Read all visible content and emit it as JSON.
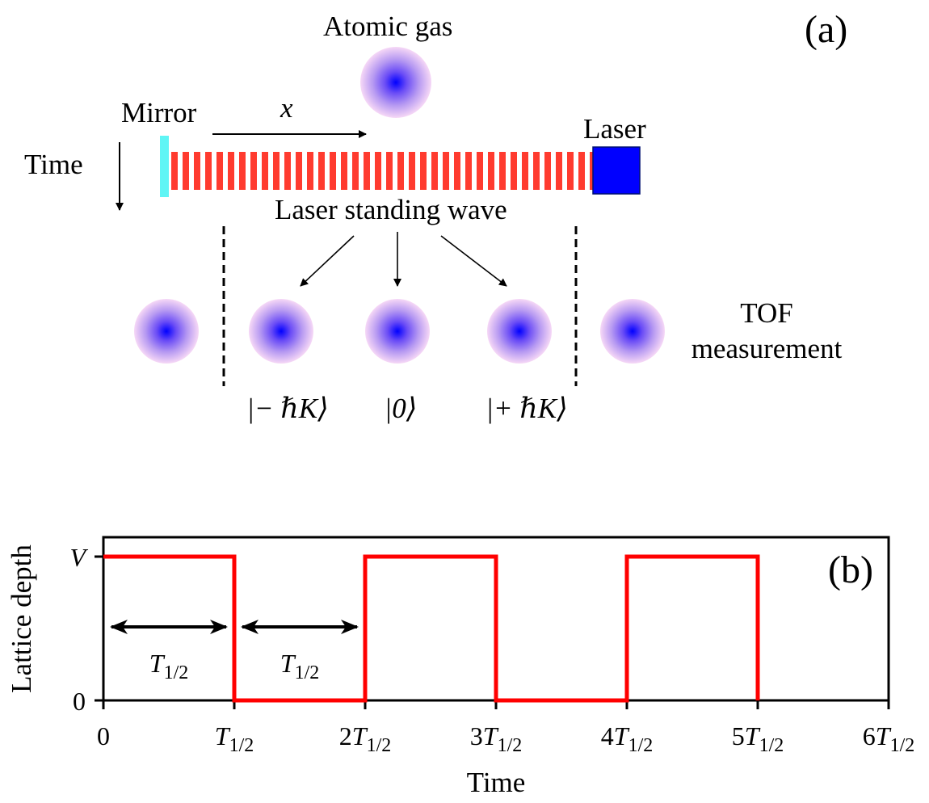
{
  "panel_a": {
    "panel_label": "(a)",
    "atomic_gas_label": "Atomic gas",
    "mirror_label": "Mirror",
    "x_axis_label": "x",
    "laser_label": "Laser",
    "time_label": "Time",
    "standing_wave_label": "Laser standing wave",
    "tof_label_line1": "TOF",
    "tof_label_line2": "measurement",
    "momentum_states": [
      "|− ℏK⟩",
      "|0⟩",
      "|+ ℏK⟩"
    ],
    "colors": {
      "mirror": "#5ff5f5",
      "wave": "#ff3b2f",
      "laser": "#0000ff",
      "gas_center": "#0000ff",
      "gas_edge": "#f4ccf4"
    }
  },
  "panel_b": {
    "panel_label": "(b)",
    "chart_data": {
      "type": "line",
      "step": true,
      "title": "",
      "xlabel": "Time",
      "ylabel": "Lattice depth",
      "x_unit": "T_1/2",
      "x_ticks": [
        0,
        1,
        2,
        3,
        4,
        5,
        6
      ],
      "x_tick_labels": [
        "0",
        "T1/2",
        "2T1/2",
        "3T1/2",
        "4T1/2",
        "5T1/2",
        "6T1/2"
      ],
      "y_tick_labels": [
        "0",
        "V"
      ],
      "xlim": [
        0,
        6
      ],
      "ylim": [
        0,
        1
      ],
      "series": [
        {
          "color": "#ff0000",
          "x": [
            0,
            1,
            1,
            2,
            2,
            3,
            3,
            4,
            4,
            5,
            5
          ],
          "y": [
            1,
            1,
            0,
            0,
            1,
            1,
            0,
            0,
            1,
            1,
            0
          ]
        }
      ],
      "annotations": [
        {
          "text": "T1/2",
          "span": [
            0,
            1
          ]
        },
        {
          "text": "T1/2",
          "span": [
            1,
            2
          ]
        }
      ]
    }
  }
}
